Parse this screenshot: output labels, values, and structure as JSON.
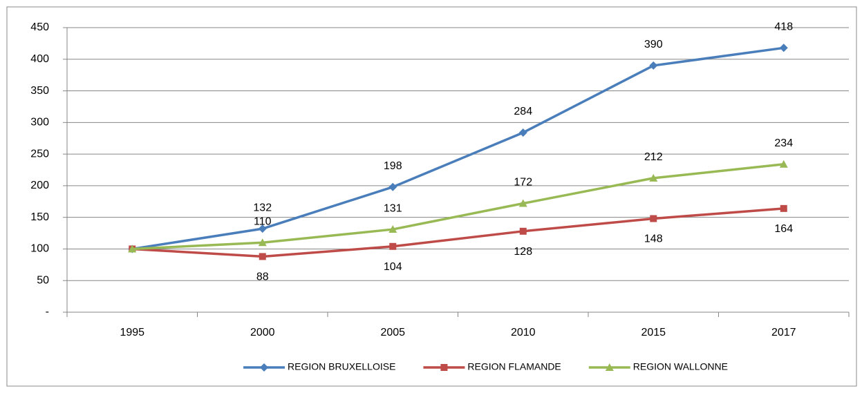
{
  "chart_data": {
    "type": "line",
    "categories": [
      "1995",
      "2000",
      "2005",
      "2010",
      "2015",
      "2017"
    ],
    "series": [
      {
        "name": "REGION BRUXELLOISE",
        "color": "#4a7ebb",
        "marker": "diamond",
        "label_position": "above",
        "values": [
          100,
          132,
          198,
          284,
          390,
          418
        ],
        "value_labels": [
          null,
          "132",
          "198",
          "284",
          "390",
          "418"
        ]
      },
      {
        "name": "REGION FLAMANDE",
        "color": "#be4b48",
        "marker": "square",
        "label_position": "below",
        "values": [
          100,
          88,
          104,
          128,
          148,
          164
        ],
        "value_labels": [
          null,
          "88",
          "104",
          "128",
          "148",
          "164"
        ]
      },
      {
        "name": "REGION WALLONNE",
        "color": "#98b954",
        "marker": "triangle",
        "label_position": "above",
        "values": [
          100,
          110,
          131,
          172,
          212,
          234
        ],
        "value_labels": [
          null,
          "110",
          "131",
          "172",
          "212",
          "234"
        ]
      }
    ],
    "ylim": [
      0,
      450
    ],
    "yticks": [
      {
        "value": 0,
        "label": "-"
      },
      50,
      100,
      150,
      200,
      250,
      300,
      350,
      400,
      450
    ],
    "grid": true,
    "legend": "bottom"
  }
}
